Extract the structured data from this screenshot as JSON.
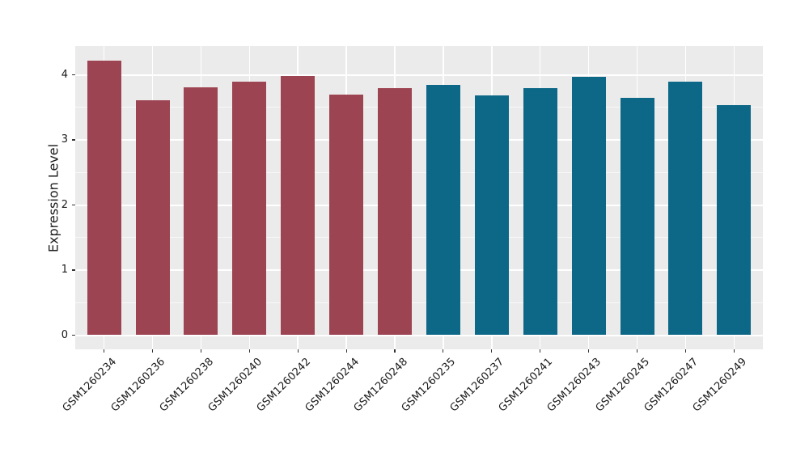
{
  "chart_data": {
    "type": "bar",
    "title": "",
    "xlabel": "",
    "ylabel": "Expression Level",
    "categories": [
      "GSM1260234",
      "GSM1260236",
      "GSM1260238",
      "GSM1260240",
      "GSM1260242",
      "GSM1260244",
      "GSM1260248",
      "GSM1260235",
      "GSM1260237",
      "GSM1260241",
      "GSM1260243",
      "GSM1260245",
      "GSM1260247",
      "GSM1260249"
    ],
    "values": [
      4.22,
      3.61,
      3.81,
      3.9,
      3.98,
      3.69,
      3.8,
      3.85,
      3.68,
      3.79,
      3.97,
      3.64,
      3.9,
      3.53
    ],
    "groups": [
      "A",
      "A",
      "A",
      "A",
      "A",
      "A",
      "A",
      "B",
      "B",
      "B",
      "B",
      "B",
      "B",
      "B"
    ],
    "group_colors": {
      "A": "#9d4452",
      "B": "#0d6787"
    },
    "yticks": [
      0,
      1,
      2,
      3,
      4
    ],
    "minor_yticks": [
      0.5,
      1.5,
      2.5,
      3.5
    ],
    "ylim": [
      0,
      4.44
    ],
    "legend_position": "none",
    "grid": "white major+minor horizontal, white major vertical on gray panel",
    "panel_background": "#ebebeb",
    "gridline_color": "#ffffff",
    "tick_color": "#333333",
    "text_color": "#1a1a1a"
  }
}
